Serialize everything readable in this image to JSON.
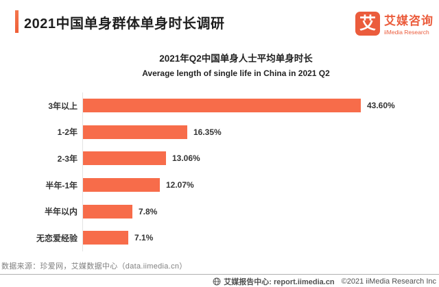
{
  "page": {
    "header": {
      "title": "2021中国单身群体单身时长调研",
      "logo": {
        "icon_char": "艾",
        "brand_cn": "艾媒咨询",
        "brand_en": "iiMedia Research"
      }
    },
    "footer": {
      "source_note": "数据来源：珍爱网，艾媒数据中心（data.iimedia.cn）",
      "report_center": "艾媒报告中心: report.iimedia.cn",
      "copyright": "©2021  iiMedia Research Inc"
    },
    "colors": {
      "accent_orange": "#EF6840",
      "logo_orange": "#EB5C3C",
      "bar_orange": "#F76C4A",
      "axis_line": "#e3e3e3",
      "text_dark": "#222222",
      "text_muted": "#7f7f7f"
    }
  },
  "chart_data": {
    "type": "bar",
    "orientation": "horizontal",
    "title": "2021年Q2中国单身人士平均单身时长",
    "subtitle": "Average length of single life in China in 2021 Q2",
    "categories": [
      "3年以上",
      "1-2年",
      "2-3年",
      "半年-1年",
      "半年以内",
      "无恋爱经验"
    ],
    "values": [
      43.6,
      16.35,
      13.06,
      12.07,
      7.8,
      7.1
    ],
    "value_labels": [
      "43.60%",
      "16.35%",
      "13.06%",
      "12.07%",
      "7.8%",
      "7.1%"
    ],
    "xlim": [
      0,
      47
    ],
    "grid": false,
    "legend": "none",
    "bar_color": "#F76C4A",
    "value_label_position": "right-of-bar"
  }
}
